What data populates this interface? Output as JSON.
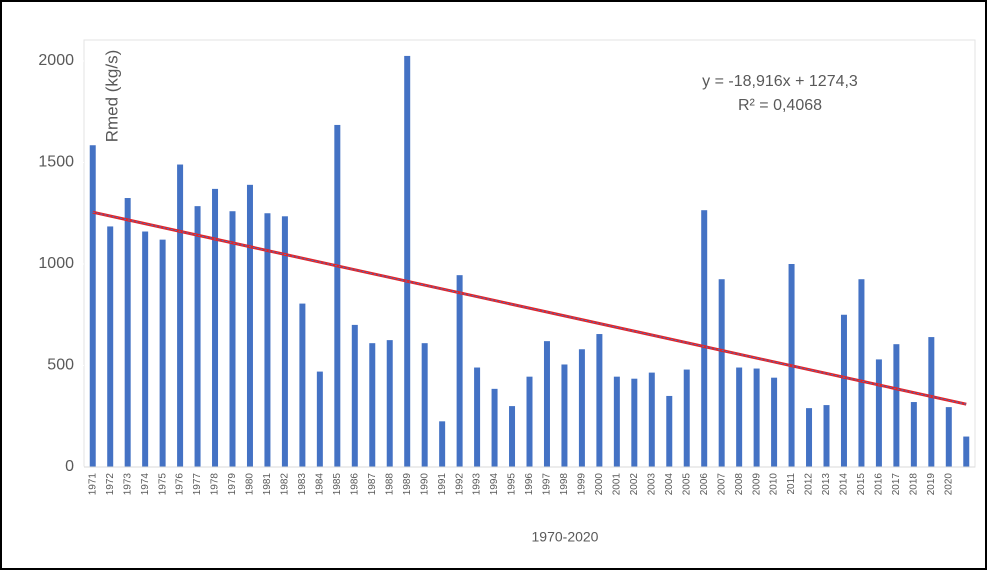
{
  "chart_data": {
    "type": "bar",
    "y_label": "Rmed (kg/s)",
    "x_label": "1970-2020",
    "categories": [
      "1971",
      "1972",
      "1973",
      "1974",
      "1975",
      "1976",
      "1977",
      "1978",
      "1979",
      "1980",
      "1981",
      "1982",
      "1983",
      "1984",
      "1985",
      "1986",
      "1987",
      "1988",
      "1989",
      "1990",
      "1991",
      "1992",
      "1993",
      "1994",
      "1995",
      "1996",
      "1997",
      "1998",
      "1999",
      "2000",
      "2001",
      "2002",
      "2003",
      "2004",
      "2005",
      "2006",
      "2007",
      "2008",
      "2009",
      "2010",
      "2011",
      "2012",
      "2013",
      "2014",
      "2015",
      "2016",
      "2017",
      "2018",
      "2019",
      "2020",
      null
    ],
    "values": [
      1585,
      1185,
      1325,
      1160,
      1120,
      1490,
      1285,
      1370,
      1260,
      1390,
      1250,
      1235,
      805,
      470,
      1685,
      700,
      610,
      625,
      2025,
      610,
      225,
      945,
      490,
      385,
      300,
      445,
      620,
      505,
      580,
      655,
      445,
      435,
      465,
      350,
      480,
      1265,
      925,
      490,
      485,
      440,
      1000,
      290,
      305,
      750,
      925,
      530,
      605,
      320,
      640,
      295,
      150
    ],
    "color": "#4472c4",
    "ylim": [
      0,
      2000
    ],
    "yticks": [
      0,
      500,
      1000,
      1500,
      2000
    ],
    "trendline": {
      "slope": -18.916,
      "intercept": 1274.3,
      "color": "#e0262b",
      "equation": "y = -18,916x + 1274,3",
      "r2_label": "R² = 0,4068"
    }
  }
}
